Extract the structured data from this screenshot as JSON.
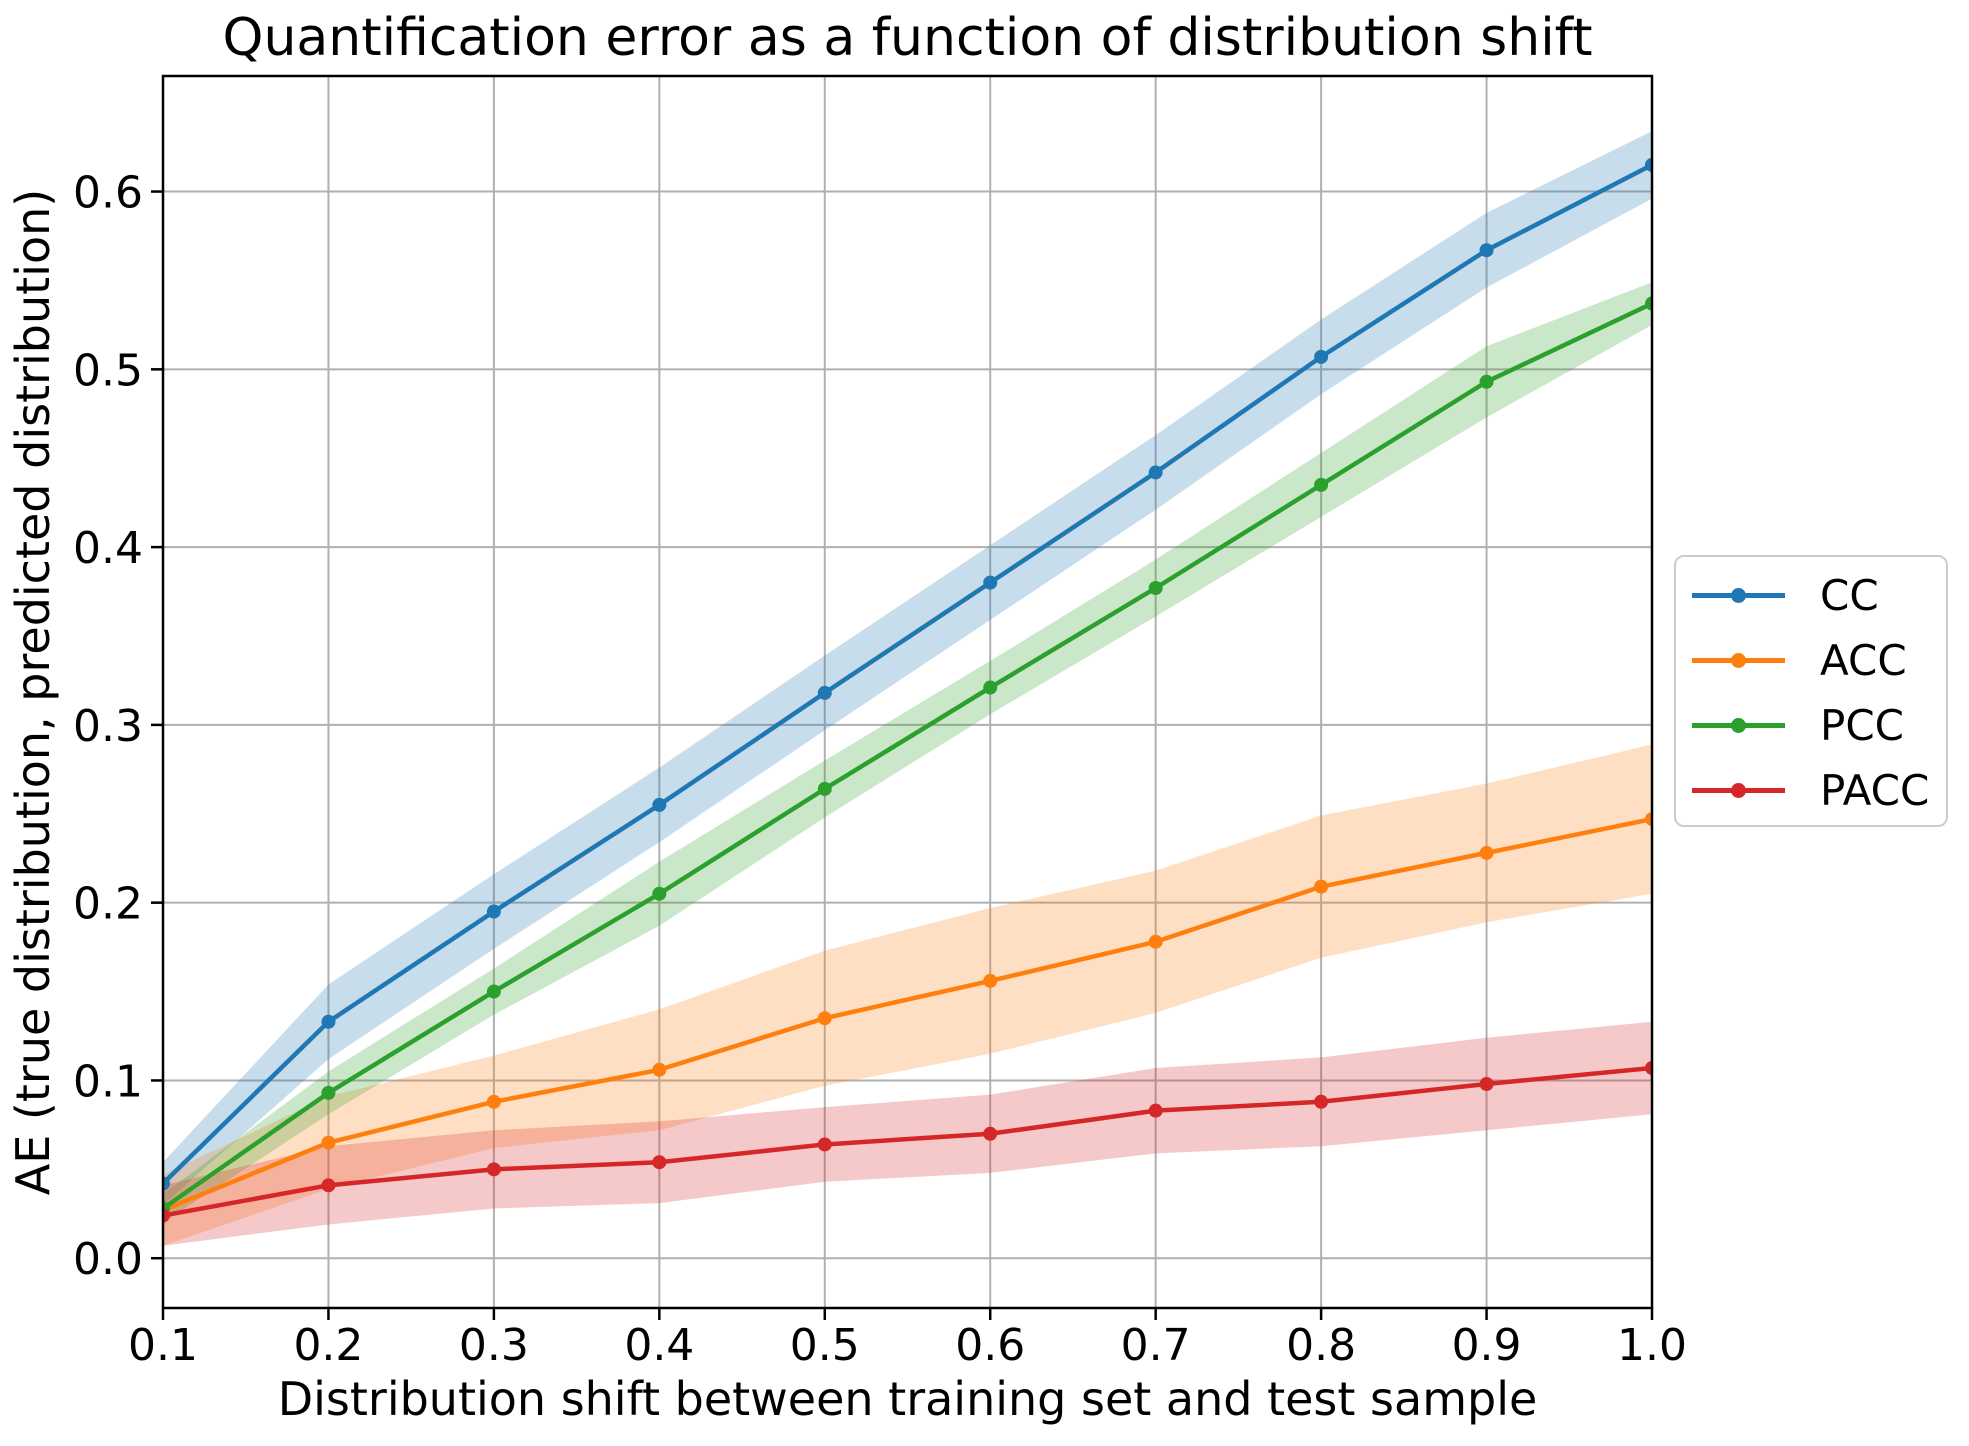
{
  "chart_data": {
    "type": "line",
    "title": "Quantification error as a function of distribution shift",
    "xlabel": "Distribution shift between training set and test sample",
    "ylabel": "AE (true distribution, predicted distribution)",
    "x": [
      0.1,
      0.2,
      0.3,
      0.4,
      0.5,
      0.6,
      0.7,
      0.8,
      0.9,
      1.0
    ],
    "xlim": [
      0.1,
      1.0
    ],
    "ylim": [
      -0.028,
      0.665
    ],
    "xtick_labels": [
      "0.1",
      "0.2",
      "0.3",
      "0.4",
      "0.5",
      "0.6",
      "0.7",
      "0.8",
      "0.9",
      "1.0"
    ],
    "ytick_values": [
      0.0,
      0.1,
      0.2,
      0.3,
      0.4,
      0.5,
      0.6
    ],
    "ytick_labels": [
      "0.0",
      "0.1",
      "0.2",
      "0.3",
      "0.4",
      "0.5",
      "0.6"
    ],
    "grid": true,
    "band_alpha": 0.25,
    "legend": {
      "position": "right-outside",
      "entries": [
        "CC",
        "ACC",
        "PCC",
        "PACC"
      ]
    },
    "series": [
      {
        "name": "CC",
        "color": "#1f77b4",
        "values": [
          0.042,
          0.133,
          0.195,
          0.255,
          0.318,
          0.38,
          0.442,
          0.507,
          0.567,
          0.615
        ],
        "band_half_width": [
          0.012,
          0.021,
          0.021,
          0.021,
          0.021,
          0.021,
          0.021,
          0.021,
          0.021,
          0.019
        ]
      },
      {
        "name": "ACC",
        "color": "#ff7f0e",
        "values": [
          0.027,
          0.065,
          0.088,
          0.106,
          0.135,
          0.156,
          0.178,
          0.209,
          0.228,
          0.247
        ],
        "band_half_width": [
          0.02,
          0.026,
          0.026,
          0.034,
          0.038,
          0.041,
          0.04,
          0.04,
          0.039,
          0.042
        ]
      },
      {
        "name": "PCC",
        "color": "#2ca02c",
        "values": [
          0.028,
          0.093,
          0.15,
          0.205,
          0.264,
          0.321,
          0.377,
          0.435,
          0.493,
          0.537
        ],
        "band_half_width": [
          0.008,
          0.012,
          0.013,
          0.018,
          0.016,
          0.015,
          0.016,
          0.018,
          0.02,
          0.012
        ]
      },
      {
        "name": "PACC",
        "color": "#d62728",
        "values": [
          0.024,
          0.041,
          0.05,
          0.054,
          0.064,
          0.07,
          0.083,
          0.088,
          0.098,
          0.107
        ],
        "band_half_width": [
          0.017,
          0.022,
          0.022,
          0.023,
          0.021,
          0.022,
          0.024,
          0.025,
          0.026,
          0.026
        ]
      }
    ],
    "style": {
      "grid_color": "#b0b0b0",
      "spine_color": "#000000",
      "background": "#ffffff",
      "legend_border": "#cccccc",
      "line_width": 4.5,
      "marker_radius": 7
    }
  }
}
